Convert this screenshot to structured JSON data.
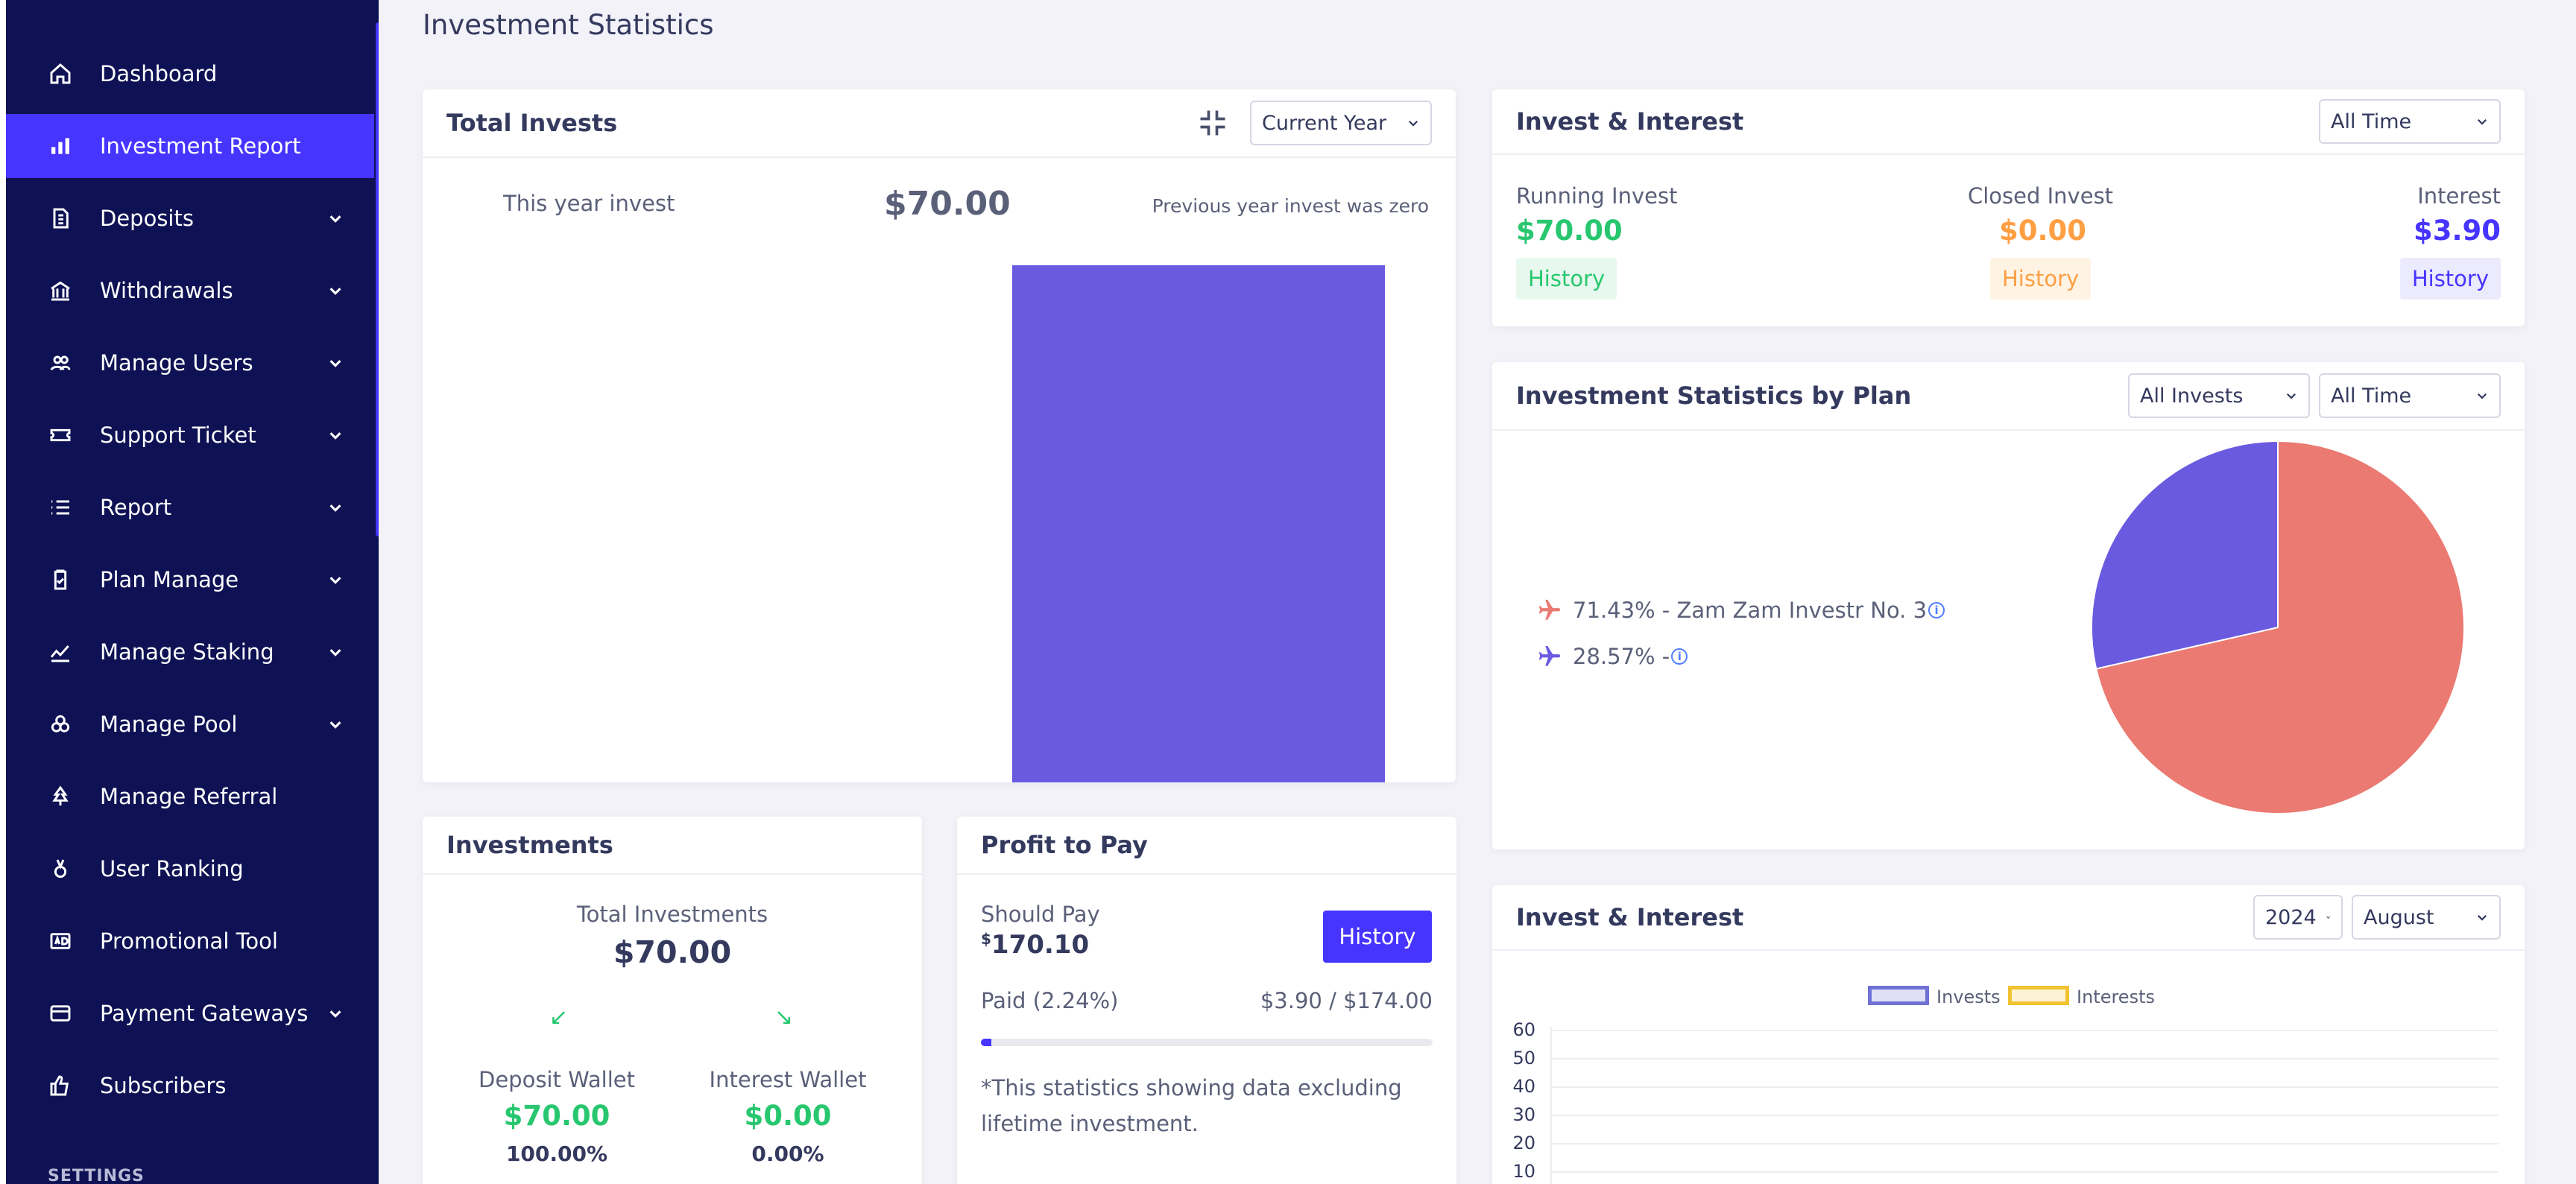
{
  "sidebar": {
    "items": [
      {
        "label": "Dashboard",
        "icon": "home-icon",
        "caret": false,
        "active": false
      },
      {
        "label": "Investment Report",
        "icon": "bar-chart-icon",
        "caret": false,
        "active": true
      },
      {
        "label": "Deposits",
        "icon": "deposit-icon",
        "caret": true,
        "active": false
      },
      {
        "label": "Withdrawals",
        "icon": "bank-icon",
        "caret": true,
        "active": false
      },
      {
        "label": "Manage Users",
        "icon": "users-icon",
        "caret": true,
        "active": false
      },
      {
        "label": "Support Ticket",
        "icon": "ticket-icon",
        "caret": true,
        "active": false
      },
      {
        "label": "Report",
        "icon": "list-icon",
        "caret": true,
        "active": false
      },
      {
        "label": "Plan Manage",
        "icon": "clipboard-check-icon",
        "caret": true,
        "active": false
      },
      {
        "label": "Manage Staking",
        "icon": "trend-icon",
        "caret": true,
        "active": false
      },
      {
        "label": "Manage Pool",
        "icon": "cubes-icon",
        "caret": true,
        "active": false
      },
      {
        "label": "Manage Referral",
        "icon": "tree-icon",
        "caret": false,
        "active": false
      },
      {
        "label": "User Ranking",
        "icon": "medal-icon",
        "caret": false,
        "active": false
      },
      {
        "label": "Promotional Tool",
        "icon": "ad-icon",
        "caret": false,
        "active": false
      },
      {
        "label": "Payment Gateways",
        "icon": "credit-card-icon",
        "caret": true,
        "active": false
      },
      {
        "label": "Subscribers",
        "icon": "thumbs-up-icon",
        "caret": false,
        "active": false
      }
    ],
    "section_label": "SETTINGS"
  },
  "page": {
    "title": "Investment Statistics"
  },
  "total_invests": {
    "title": "Total Invests",
    "period_select": "Current Year",
    "this_year_label": "This year invest",
    "amount": "$70.00",
    "previous_note": "Previous year invest was zero"
  },
  "invest_interest_summary": {
    "title": "Invest & Interest",
    "period_select": "All Time",
    "running": {
      "label": "Running Invest",
      "value": "$70.00",
      "history": "History"
    },
    "closed": {
      "label": "Closed Invest",
      "value": "$0.00",
      "history": "History"
    },
    "interest": {
      "label": "Interest",
      "value": "$3.90",
      "history": "History"
    }
  },
  "stats_by_plan": {
    "title": "Investment Statistics by Plan",
    "filter_select": "All Invests",
    "period_select": "All Time",
    "legend": [
      {
        "text": "71.43% - Zam Zam Investr No. 3",
        "color": "#ea7a72"
      },
      {
        "text": "28.57% -",
        "color": "#6a5ae0"
      }
    ]
  },
  "investments": {
    "title": "Investments",
    "total_label": "Total Investments",
    "total_value": "$70.00",
    "deposit_label": "Deposit Wallet",
    "deposit_value": "$70.00",
    "deposit_pct": "100.00%",
    "interest_label": "Interest Wallet",
    "interest_value": "$0.00",
    "interest_pct": "0.00%"
  },
  "profit_to_pay": {
    "title": "Profit to Pay",
    "should_pay_label": "Should Pay",
    "currency_symbol": "$",
    "should_pay_value": "170.10",
    "history_button": "History",
    "paid_label": "Paid (2.24%)",
    "paid_value": "$3.90 / $174.00",
    "paid_fraction": 0.0224,
    "note": "*This statistics showing data excluding lifetime investment."
  },
  "invest_interest_chart": {
    "title": "Invest & Interest",
    "year_select": "2024",
    "month_select": "August",
    "legend_invests": "Invests",
    "legend_interests": "Interests"
  },
  "colors": {
    "sidebar_bg": "#0e1254",
    "accent": "#4634ff",
    "bar_color": "#6a5ae0",
    "pie_primary": "#ea7a72",
    "pie_secondary": "#6a5ae0",
    "green": "#28c76f",
    "orange": "#ff9f43"
  },
  "chart_data": [
    {
      "type": "bar",
      "title": "Total Invests",
      "values": [
        70
      ],
      "note": "single bar representing current year invest"
    },
    {
      "type": "pie",
      "title": "Investment Statistics by Plan",
      "categories": [
        "Zam Zam Investr No. 3",
        ""
      ],
      "values": [
        71.43,
        28.57
      ]
    },
    {
      "type": "bar",
      "title": "Invest & Interest",
      "series": [
        {
          "name": "Invests",
          "values": []
        },
        {
          "name": "Interests",
          "values": []
        }
      ],
      "yticks": [
        10,
        20,
        30,
        40,
        50,
        60
      ],
      "ylim": [
        0,
        60
      ]
    }
  ]
}
